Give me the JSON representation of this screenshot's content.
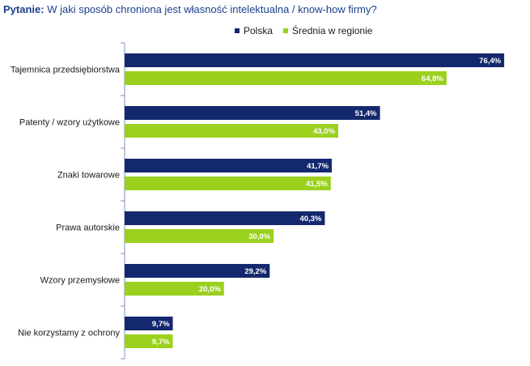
{
  "question": {
    "label": "Pytanie:",
    "text": " W jaki sposób chroniona jest własność intelektualna / know-how firmy?"
  },
  "colors": {
    "series_1": "#14286e",
    "series_2": "#9bd11e",
    "axis": "#7f8fb8",
    "label_text": "#1a1a1a",
    "value_text": "#ffffff"
  },
  "chart_data": {
    "type": "bar",
    "orientation": "horizontal",
    "title": "W jaki sposób chroniona jest własność intelektualna / know-how firmy?",
    "xlabel": "",
    "ylabel": "",
    "xlim": [
      0,
      80
    ],
    "grid": false,
    "legend_position": "top",
    "categories": [
      "Tajemnica przedsiębiorstwa",
      "Patenty / wzory użytkowe",
      "Znaki towarowe",
      "Prawa autorskie",
      "Wzory przemysłowe",
      "Nie korzystamy z ochrony"
    ],
    "series": [
      {
        "name": "Polska",
        "values": [
          76.4,
          51.4,
          41.7,
          40.3,
          29.2,
          9.7
        ],
        "labels": [
          "76,4%",
          "51,4%",
          "41,7%",
          "40,3%",
          "29,2%",
          "9,7%"
        ]
      },
      {
        "name": "Średnia w regionie",
        "values": [
          64.8,
          43.0,
          41.5,
          30.0,
          20.0,
          9.7
        ],
        "labels": [
          "64,8%",
          "43,0%",
          "41,5%",
          "30,0%",
          "20,0%",
          "9,7%"
        ]
      }
    ]
  }
}
